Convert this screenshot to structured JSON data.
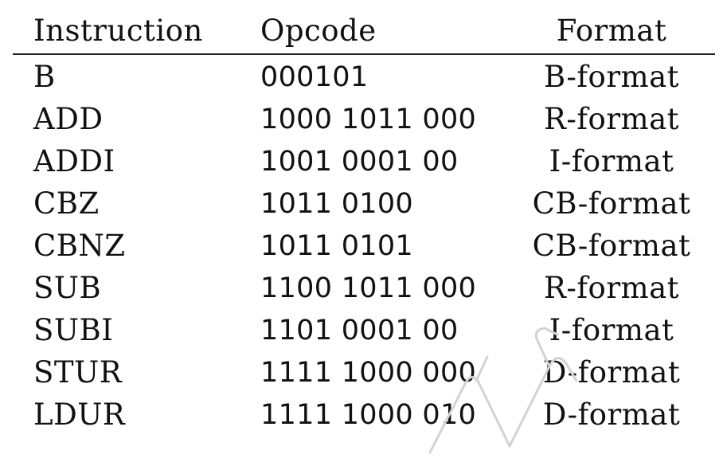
{
  "table": {
    "headers": [
      "Instruction",
      "Opcode",
      "Format"
    ],
    "rows": [
      [
        "B",
        "000101",
        "B-format"
      ],
      [
        "ADD",
        "1000 1011 000",
        "R-format"
      ],
      [
        "ADDI",
        "1001 0001 00",
        "I-format"
      ],
      [
        "CBZ",
        "1011 0100",
        "CB-format"
      ],
      [
        "CBNZ",
        "1011 0101",
        "CB-format"
      ],
      [
        "SUB",
        "1100 1011 000",
        "R-format"
      ],
      [
        "SUBI",
        "1101 0001 00",
        "I-format"
      ],
      [
        "STUR",
        "1111 1000 000",
        "D-format"
      ],
      [
        "LDUR",
        "1111 1000 010",
        "D-format"
      ]
    ]
  }
}
